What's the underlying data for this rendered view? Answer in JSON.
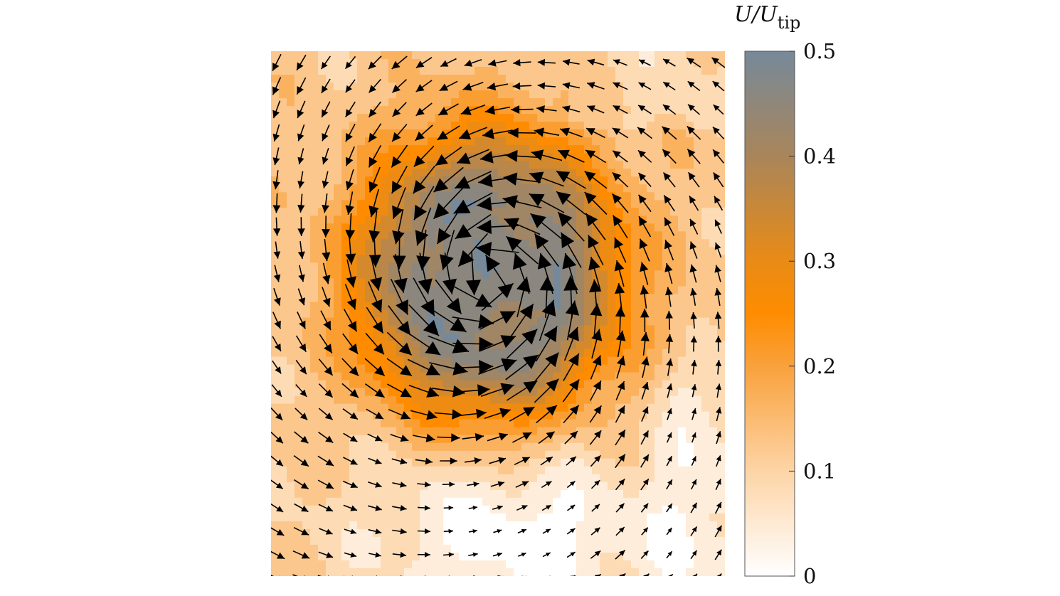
{
  "chart_data": {
    "type": "heatmap",
    "subtype": "vector-field-over-contour",
    "title": "",
    "xlabel": "",
    "ylabel": "",
    "grid": false,
    "x_range": [
      0,
      1
    ],
    "y_range": [
      0,
      1
    ],
    "field": {
      "quantity": "U/U_tip",
      "vortex_center": [
        0.48,
        0.57
      ],
      "peak_value": 0.5,
      "core_radius": 0.14,
      "background_value": 0.12,
      "low_speed_region": {
        "center": [
          0.55,
          0.08
        ],
        "value": 0.0
      }
    },
    "colorbar": {
      "title_main": "U/U",
      "title_sub": "tip",
      "range": [
        0,
        0.5
      ],
      "ticks": [
        0,
        0.1,
        0.2,
        0.3,
        0.4,
        0.5
      ],
      "tick_labels": [
        "0",
        "0.1",
        "0.2",
        "0.3",
        "0.4",
        "0.5"
      ],
      "colors": [
        {
          "value": 0.0,
          "color": "#ffffff"
        },
        {
          "value": 0.1,
          "color": "#fdd4a6"
        },
        {
          "value": 0.2,
          "color": "#f9a13c"
        },
        {
          "value": 0.25,
          "color": "#ff8c00"
        },
        {
          "value": 0.3,
          "color": "#e98b16"
        },
        {
          "value": 0.4,
          "color": "#a9855a"
        },
        {
          "value": 0.5,
          "color": "#76899a"
        }
      ]
    },
    "quiver": {
      "grid_columns": 19,
      "grid_rows": 23,
      "color": "#000000",
      "rotation": "counterclockwise"
    }
  }
}
